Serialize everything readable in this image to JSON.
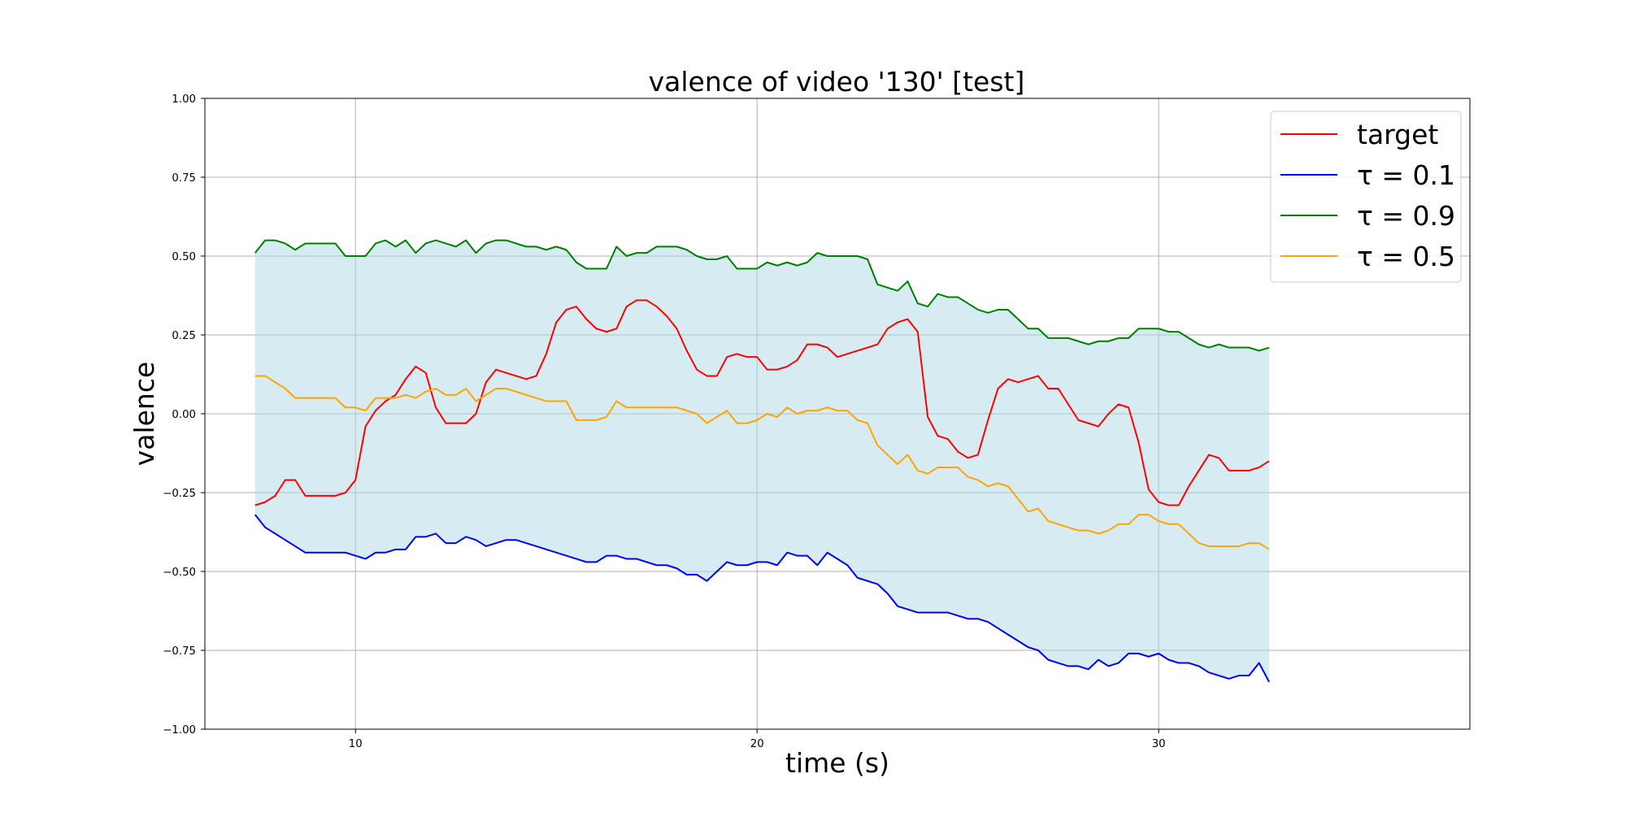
{
  "chart_data": {
    "type": "line",
    "title": "valence of video '130' [test]",
    "xlabel": "time (s)",
    "ylabel": "valence",
    "xlim": [
      6.25,
      37.75
    ],
    "ylim": [
      -1.0,
      1.0
    ],
    "x_ticks": [
      10,
      20,
      30
    ],
    "x_tick_labels": [
      "10",
      "20",
      "30"
    ],
    "y_ticks": [
      -1.0,
      -0.75,
      -0.5,
      -0.25,
      0.0,
      0.25,
      0.5,
      0.75,
      1.0
    ],
    "y_tick_labels": [
      "−1.00",
      "−0.75",
      "−0.50",
      "−0.25",
      "0.00",
      "0.25",
      "0.50",
      "0.75",
      "1.00"
    ],
    "grid": true,
    "legend_position": "top-right",
    "band": {
      "between": [
        "τ = 0.1",
        "τ = 0.9"
      ],
      "color": "#add8e6",
      "opacity": 0.5
    },
    "x": [
      7.5,
      7.75,
      8.0,
      8.25,
      8.5,
      8.75,
      9.0,
      9.25,
      9.5,
      9.75,
      10.0,
      10.25,
      10.5,
      10.75,
      11.0,
      11.25,
      11.5,
      11.75,
      12.0,
      12.25,
      12.5,
      12.75,
      13.0,
      13.25,
      13.5,
      13.75,
      14.0,
      14.25,
      14.5,
      14.75,
      15.0,
      15.25,
      15.5,
      15.75,
      16.0,
      16.25,
      16.5,
      16.75,
      17.0,
      17.25,
      17.5,
      17.75,
      18.0,
      18.25,
      18.5,
      18.75,
      19.0,
      19.25,
      19.5,
      19.75,
      20.0,
      20.25,
      20.5,
      20.75,
      21.0,
      21.25,
      21.5,
      21.75,
      22.0,
      22.25,
      22.5,
      22.75,
      23.0,
      23.25,
      23.5,
      23.75,
      24.0,
      24.25,
      24.5,
      24.75,
      25.0,
      25.25,
      25.5,
      25.75,
      26.0,
      26.25,
      26.5,
      26.75,
      27.0,
      27.25,
      27.5,
      27.75,
      28.0,
      28.25,
      28.5,
      28.75,
      29.0,
      29.25,
      29.5,
      29.75,
      30.0,
      30.25,
      30.5,
      30.75,
      31.0,
      31.25,
      31.5,
      31.75,
      32.0,
      32.25,
      32.5,
      32.75
    ],
    "series": [
      {
        "name": "target",
        "color": "#ff0000",
        "values": [
          -0.29,
          -0.28,
          -0.26,
          -0.21,
          -0.21,
          -0.26,
          -0.26,
          -0.26,
          -0.26,
          -0.25,
          -0.21,
          -0.04,
          0.01,
          0.04,
          0.06,
          0.11,
          0.15,
          0.13,
          0.02,
          -0.03,
          -0.03,
          -0.03,
          0.0,
          0.1,
          0.14,
          0.13,
          0.12,
          0.11,
          0.12,
          0.19,
          0.29,
          0.33,
          0.34,
          0.3,
          0.27,
          0.26,
          0.27,
          0.34,
          0.36,
          0.36,
          0.34,
          0.31,
          0.27,
          0.2,
          0.14,
          0.12,
          0.12,
          0.18,
          0.19,
          0.18,
          0.18,
          0.14,
          0.14,
          0.15,
          0.17,
          0.22,
          0.22,
          0.21,
          0.18,
          0.19,
          0.2,
          0.21,
          0.22,
          0.27,
          0.29,
          0.3,
          0.26,
          -0.01,
          -0.07,
          -0.08,
          -0.12,
          -0.14,
          -0.13,
          -0.02,
          0.08,
          0.11,
          0.1,
          0.11,
          0.12,
          0.08,
          0.08,
          0.03,
          -0.02,
          -0.03,
          -0.04,
          0.0,
          0.03,
          0.02,
          -0.09,
          -0.24,
          -0.28,
          -0.29,
          -0.29,
          -0.23,
          -0.18,
          -0.13,
          -0.14,
          -0.18,
          -0.18,
          -0.18,
          -0.17,
          -0.15
        ]
      },
      {
        "name": "τ = 0.1",
        "color": "#0000ff",
        "values": [
          -0.32,
          -0.36,
          -0.38,
          -0.4,
          -0.42,
          -0.44,
          -0.44,
          -0.44,
          -0.44,
          -0.44,
          -0.45,
          -0.46,
          -0.44,
          -0.44,
          -0.43,
          -0.43,
          -0.39,
          -0.39,
          -0.38,
          -0.41,
          -0.41,
          -0.39,
          -0.4,
          -0.42,
          -0.41,
          -0.4,
          -0.4,
          -0.41,
          -0.42,
          -0.43,
          -0.44,
          -0.45,
          -0.46,
          -0.47,
          -0.47,
          -0.45,
          -0.45,
          -0.46,
          -0.46,
          -0.47,
          -0.48,
          -0.48,
          -0.49,
          -0.51,
          -0.51,
          -0.53,
          -0.5,
          -0.47,
          -0.48,
          -0.48,
          -0.47,
          -0.47,
          -0.48,
          -0.44,
          -0.45,
          -0.45,
          -0.48,
          -0.44,
          -0.46,
          -0.48,
          -0.52,
          -0.53,
          -0.54,
          -0.57,
          -0.61,
          -0.62,
          -0.63,
          -0.63,
          -0.63,
          -0.63,
          -0.64,
          -0.65,
          -0.65,
          -0.66,
          -0.68,
          -0.7,
          -0.72,
          -0.74,
          -0.75,
          -0.78,
          -0.79,
          -0.8,
          -0.8,
          -0.81,
          -0.78,
          -0.8,
          -0.79,
          -0.76,
          -0.76,
          -0.77,
          -0.76,
          -0.78,
          -0.79,
          -0.79,
          -0.8,
          -0.82,
          -0.83,
          -0.84,
          -0.83,
          -0.83,
          -0.79,
          -0.85
        ]
      },
      {
        "name": "τ = 0.9",
        "color": "#008000",
        "values": [
          0.51,
          0.55,
          0.55,
          0.54,
          0.52,
          0.54,
          0.54,
          0.54,
          0.54,
          0.5,
          0.5,
          0.5,
          0.54,
          0.55,
          0.53,
          0.55,
          0.51,
          0.54,
          0.55,
          0.54,
          0.53,
          0.55,
          0.51,
          0.54,
          0.55,
          0.55,
          0.54,
          0.53,
          0.53,
          0.52,
          0.53,
          0.52,
          0.48,
          0.46,
          0.46,
          0.46,
          0.53,
          0.5,
          0.51,
          0.51,
          0.53,
          0.53,
          0.53,
          0.52,
          0.5,
          0.49,
          0.49,
          0.5,
          0.46,
          0.46,
          0.46,
          0.48,
          0.47,
          0.48,
          0.47,
          0.48,
          0.51,
          0.5,
          0.5,
          0.5,
          0.5,
          0.49,
          0.41,
          0.4,
          0.39,
          0.42,
          0.35,
          0.34,
          0.38,
          0.37,
          0.37,
          0.35,
          0.33,
          0.32,
          0.33,
          0.33,
          0.3,
          0.27,
          0.27,
          0.24,
          0.24,
          0.24,
          0.23,
          0.22,
          0.23,
          0.23,
          0.24,
          0.24,
          0.27,
          0.27,
          0.27,
          0.26,
          0.26,
          0.24,
          0.22,
          0.21,
          0.22,
          0.21,
          0.21,
          0.21,
          0.2,
          0.21
        ]
      },
      {
        "name": "τ = 0.5",
        "color": "#ffa500",
        "values": [
          0.12,
          0.12,
          0.1,
          0.08,
          0.05,
          0.05,
          0.05,
          0.05,
          0.05,
          0.02,
          0.02,
          0.01,
          0.05,
          0.05,
          0.05,
          0.06,
          0.05,
          0.07,
          0.08,
          0.06,
          0.06,
          0.08,
          0.04,
          0.06,
          0.08,
          0.08,
          0.07,
          0.06,
          0.05,
          0.04,
          0.04,
          0.04,
          -0.02,
          -0.02,
          -0.02,
          -0.01,
          0.04,
          0.02,
          0.02,
          0.02,
          0.02,
          0.02,
          0.02,
          0.01,
          0.0,
          -0.03,
          -0.01,
          0.01,
          -0.03,
          -0.03,
          -0.02,
          0.0,
          -0.01,
          0.02,
          0.0,
          0.01,
          0.01,
          0.02,
          0.01,
          0.01,
          -0.02,
          -0.03,
          -0.1,
          -0.13,
          -0.16,
          -0.13,
          -0.18,
          -0.19,
          -0.17,
          -0.17,
          -0.17,
          -0.2,
          -0.21,
          -0.23,
          -0.22,
          -0.23,
          -0.27,
          -0.31,
          -0.3,
          -0.34,
          -0.35,
          -0.36,
          -0.37,
          -0.37,
          -0.38,
          -0.37,
          -0.35,
          -0.35,
          -0.32,
          -0.32,
          -0.34,
          -0.35,
          -0.35,
          -0.38,
          -0.41,
          -0.42,
          -0.42,
          -0.42,
          -0.42,
          -0.41,
          -0.41,
          -0.43
        ]
      }
    ]
  }
}
